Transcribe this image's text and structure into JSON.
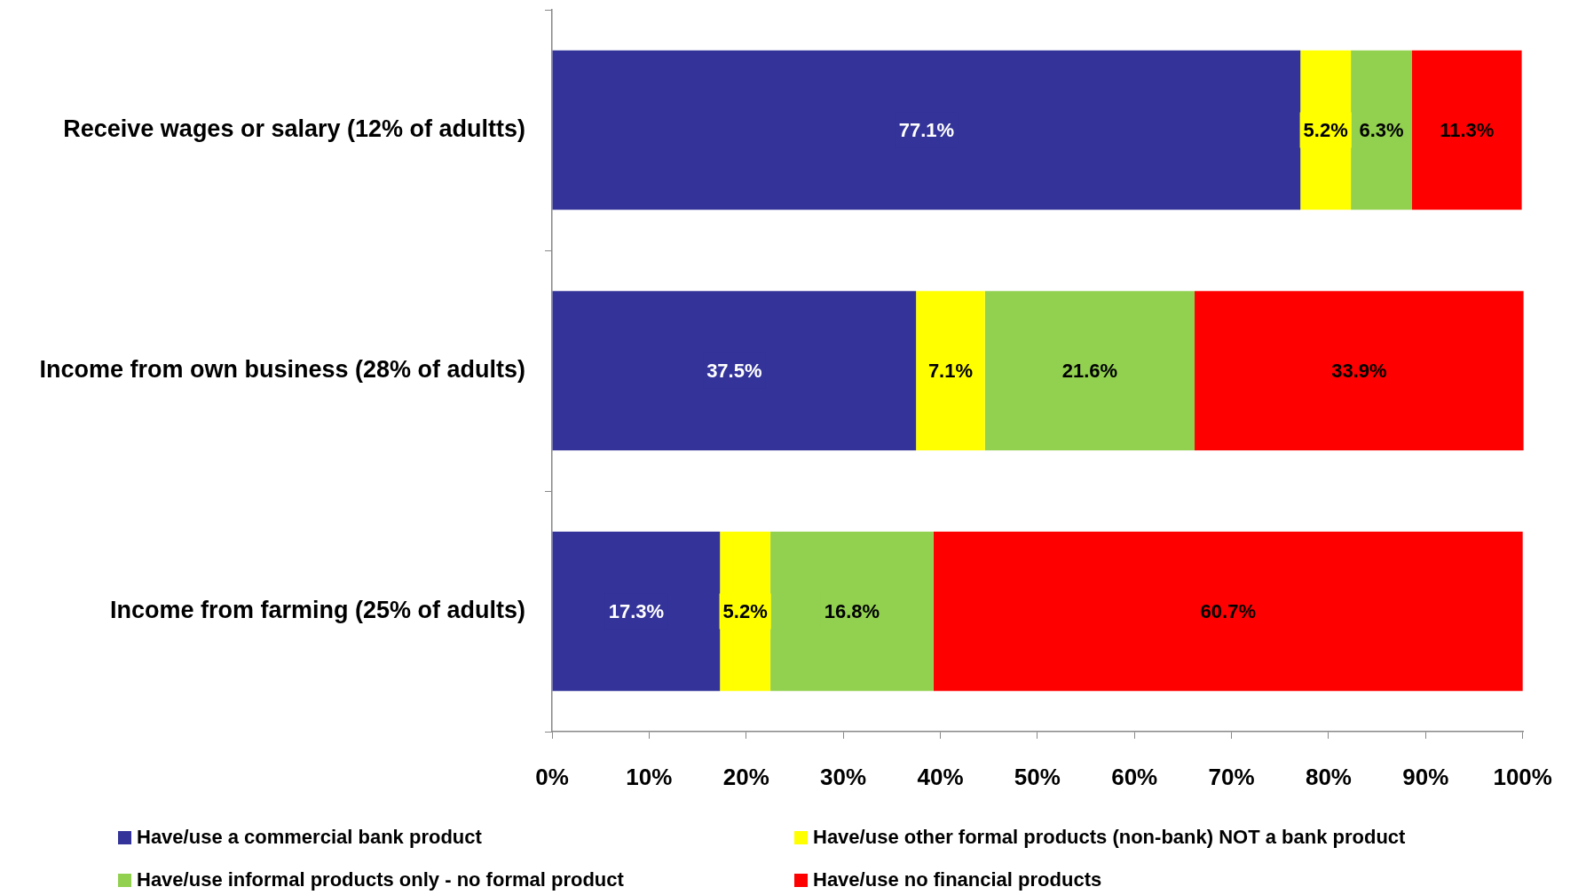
{
  "chart_data": {
    "type": "bar",
    "orientation": "horizontal",
    "stacked": true,
    "categories": [
      "Receive wages or salary (12% of adultts)",
      "Income from own business (28% of adults)",
      "Income from farming (25% of adults)"
    ],
    "series": [
      {
        "name": "Have/use a commercial bank product",
        "color": "#333399",
        "values": [
          77.1,
          37.5,
          17.3
        ],
        "value_labels": [
          "77.1%",
          "37.5%",
          "17.3%"
        ]
      },
      {
        "name": "Have/use other formal products (non-bank) NOT a bank product",
        "color": "#ffff00",
        "values": [
          5.2,
          7.1,
          5.2
        ],
        "value_labels": [
          "5.2%",
          "7.1%",
          "5.2%"
        ]
      },
      {
        "name": "Have/use informal products only - no formal product",
        "color": "#92d050",
        "values": [
          6.3,
          21.6,
          16.8
        ],
        "value_labels": [
          "6.3%",
          "21.6%",
          "16.8%"
        ]
      },
      {
        "name": "Have/use no financial products",
        "color": "#ff0000",
        "values": [
          11.3,
          33.9,
          60.7
        ],
        "value_labels": [
          "11.3%",
          "33.9%",
          "60.7%"
        ]
      }
    ],
    "xlim": [
      0,
      100.1
    ],
    "xticks": [
      {
        "value": 0,
        "label": "0%"
      },
      {
        "value": 10,
        "label": "10%"
      },
      {
        "value": 20,
        "label": "20%"
      },
      {
        "value": 30,
        "label": "30%"
      },
      {
        "value": 40,
        "label": "40%"
      },
      {
        "value": 50,
        "label": "50%"
      },
      {
        "value": 60,
        "label": "60%"
      },
      {
        "value": 70,
        "label": "70%"
      },
      {
        "value": 80,
        "label": "80%"
      },
      {
        "value": 90,
        "label": "90%"
      },
      {
        "value": 100,
        "label": "100%"
      }
    ],
    "grid": false,
    "legend": "bottom"
  }
}
